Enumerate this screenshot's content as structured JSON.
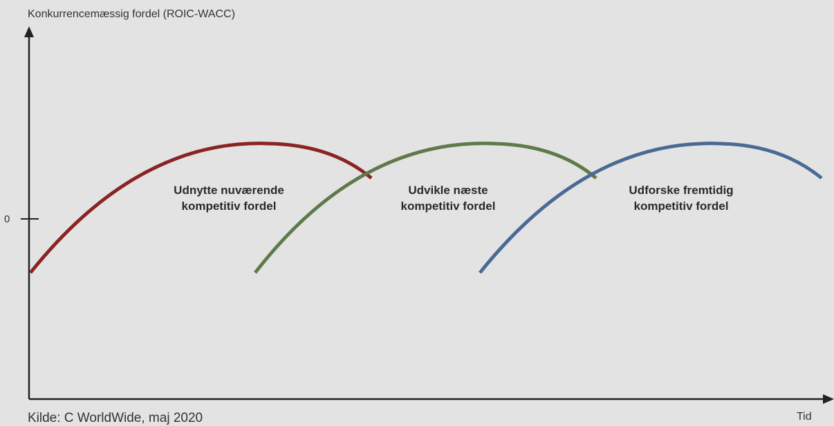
{
  "axes": {
    "y_label": "Konkurrencemæssig fordel (ROIC-WACC)",
    "x_label": "Tid",
    "zero_label": "0"
  },
  "source": "Kilde: C WorldWide, maj 2020",
  "curves": [
    {
      "name": "exploit",
      "color": "#8b2323",
      "label_line1": "Udnytte nuværende",
      "label_line2": "kompetitiv fordel"
    },
    {
      "name": "develop",
      "color": "#5f7a4a",
      "label_line1": "Udvikle næste",
      "label_line2": "kompetitiv fordel"
    },
    {
      "name": "explore",
      "color": "#4a6a93",
      "label_line1": "Udforske fremtidig",
      "label_line2": "kompetitiv fordel"
    }
  ],
  "colors": {
    "axis": "#222222",
    "text": "#333333"
  }
}
